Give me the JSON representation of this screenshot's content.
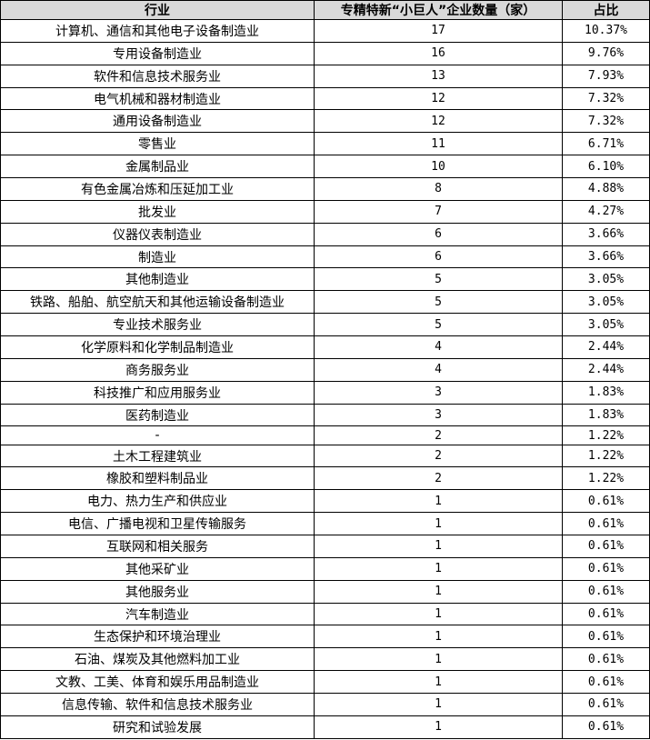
{
  "table": {
    "header": [
      "行业",
      "专精特新“小巨人”企业数量（家）",
      "占比"
    ],
    "rows": [
      [
        "计算机、通信和其他电子设备制造业",
        17,
        "10.37%"
      ],
      [
        "专用设备制造业",
        16,
        "9.76%"
      ],
      [
        "软件和信息技术服务业",
        13,
        "7.93%"
      ],
      [
        "电气机械和器材制造业",
        12,
        "7.32%"
      ],
      [
        "通用设备制造业",
        12,
        "7.32%"
      ],
      [
        "零售业",
        11,
        "6.71%"
      ],
      [
        "金属制品业",
        10,
        "6.10%"
      ],
      [
        "有色金属冶炼和压延加工业",
        8,
        "4.88%"
      ],
      [
        "批发业",
        7,
        "4.27%"
      ],
      [
        "仪器仪表制造业",
        6,
        "3.66%"
      ],
      [
        "制造业",
        6,
        "3.66%"
      ],
      [
        "其他制造业",
        5,
        "3.05%"
      ],
      [
        "铁路、船舶、航空航天和其他运输设备制造业",
        5,
        "3.05%"
      ],
      [
        "专业技术服务业",
        5,
        "3.05%"
      ],
      [
        "化学原料和化学制品制造业",
        4,
        "2.44%"
      ],
      [
        "商务服务业",
        4,
        "2.44%"
      ],
      [
        "科技推广和应用服务业",
        3,
        "1.83%"
      ],
      [
        "医药制造业",
        3,
        "1.83%"
      ],
      [
        "-",
        2,
        "1.22%"
      ],
      [
        "土木工程建筑业",
        2,
        "1.22%"
      ],
      [
        "橡胶和塑料制品业",
        2,
        "1.22%"
      ],
      [
        "电力、热力生产和供应业",
        1,
        "0.61%"
      ],
      [
        "电信、广播电视和卫星传输服务",
        1,
        "0.61%"
      ],
      [
        "互联网和相关服务",
        1,
        "0.61%"
      ],
      [
        "其他采矿业",
        1,
        "0.61%"
      ],
      [
        "其他服务业",
        1,
        "0.61%"
      ],
      [
        "汽车制造业",
        1,
        "0.61%"
      ],
      [
        "生态保护和环境治理业",
        1,
        "0.61%"
      ],
      [
        "石油、煤炭及其他燃料加工业",
        1,
        "0.61%"
      ],
      [
        "文教、工美、体育和娱乐用品制造业",
        1,
        "0.61%"
      ],
      [
        "信息传输、软件和信息技术服务业",
        1,
        "0.61%"
      ],
      [
        "研究和试验发展",
        1,
        "0.61%"
      ]
    ]
  }
}
